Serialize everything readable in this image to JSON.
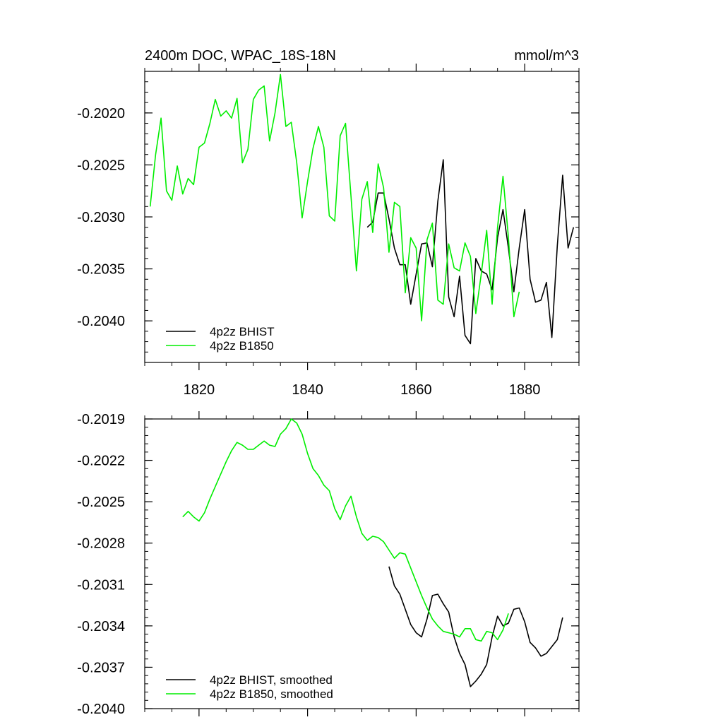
{
  "chart_data": [
    {
      "type": "line",
      "title": "2400m DOC, WPAC_18S-18N",
      "units_label": "mmol/m^3",
      "xlim": [
        1810,
        1890
      ],
      "ylim": [
        -0.2044,
        -0.2016
      ],
      "x_ticks": [
        1820,
        1840,
        1860,
        1880
      ],
      "x_tick_labels": [
        "1820",
        "1840",
        "1860",
        "1880"
      ],
      "y_ticks": [
        -0.202,
        -0.2025,
        -0.203,
        -0.2035,
        -0.204
      ],
      "y_tick_labels": [
        "-0.2020",
        "-0.2025",
        "-0.2030",
        "-0.2035",
        "-0.2040"
      ],
      "legend_position": "bottom-left",
      "series": [
        {
          "name": "4p2z BHIST",
          "color": "#000000",
          "x": [
            1851,
            1852,
            1853,
            1854,
            1855,
            1856,
            1857,
            1858,
            1859,
            1860,
            1861,
            1862,
            1863,
            1864,
            1865,
            1866,
            1867,
            1868,
            1869,
            1870,
            1871,
            1872,
            1873,
            1874,
            1875,
            1876,
            1877,
            1878,
            1879,
            1880,
            1881,
            1882,
            1883,
            1884,
            1885,
            1886,
            1887,
            1888,
            1889
          ],
          "values": [
            -0.2031,
            -0.20305,
            -0.20277,
            -0.20277,
            -0.20302,
            -0.2033,
            -0.20346,
            -0.20346,
            -0.20384,
            -0.20355,
            -0.20326,
            -0.20325,
            -0.20348,
            -0.20285,
            -0.20245,
            -0.20377,
            -0.20396,
            -0.20357,
            -0.20414,
            -0.20422,
            -0.2034,
            -0.20352,
            -0.20355,
            -0.2037,
            -0.2032,
            -0.20293,
            -0.2033,
            -0.20372,
            -0.2033,
            -0.20293,
            -0.2036,
            -0.20382,
            -0.2038,
            -0.20363,
            -0.20416,
            -0.20328,
            -0.2026,
            -0.2033,
            -0.2031
          ]
        },
        {
          "name": "4p2z B1850",
          "color": "#00ee00",
          "x": [
            1811,
            1812,
            1813,
            1814,
            1815,
            1816,
            1817,
            1818,
            1819,
            1820,
            1821,
            1822,
            1823,
            1824,
            1825,
            1826,
            1827,
            1828,
            1829,
            1830,
            1831,
            1832,
            1833,
            1834,
            1835,
            1836,
            1837,
            1838,
            1839,
            1840,
            1841,
            1842,
            1843,
            1844,
            1845,
            1846,
            1847,
            1848,
            1849,
            1850,
            1851,
            1852,
            1853,
            1854,
            1855,
            1856,
            1857,
            1858,
            1859,
            1860,
            1861,
            1862,
            1863,
            1864,
            1865,
            1866,
            1867,
            1868,
            1869,
            1870,
            1871,
            1872,
            1873,
            1874,
            1875,
            1876,
            1877,
            1878,
            1879
          ],
          "values": [
            -0.2029,
            -0.2024,
            -0.20205,
            -0.20275,
            -0.20284,
            -0.20251,
            -0.20278,
            -0.20263,
            -0.20269,
            -0.20233,
            -0.20229,
            -0.2021,
            -0.20187,
            -0.20203,
            -0.20198,
            -0.20205,
            -0.20186,
            -0.20248,
            -0.20235,
            -0.20187,
            -0.20178,
            -0.20174,
            -0.20227,
            -0.202,
            -0.20163,
            -0.20213,
            -0.20209,
            -0.20248,
            -0.20301,
            -0.20266,
            -0.20234,
            -0.20213,
            -0.20233,
            -0.20299,
            -0.20304,
            -0.20222,
            -0.2021,
            -0.2028,
            -0.20352,
            -0.20283,
            -0.20266,
            -0.20315,
            -0.20249,
            -0.20272,
            -0.20334,
            -0.20286,
            -0.2029,
            -0.20373,
            -0.2032,
            -0.2033,
            -0.204,
            -0.20322,
            -0.20306,
            -0.2038,
            -0.20384,
            -0.20326,
            -0.20349,
            -0.20352,
            -0.20325,
            -0.20338,
            -0.20393,
            -0.20355,
            -0.20313,
            -0.20384,
            -0.2031,
            -0.20261,
            -0.2032,
            -0.20396,
            -0.20372
          ]
        }
      ]
    },
    {
      "type": "line",
      "title": "",
      "xlim": [
        1810,
        1890
      ],
      "ylim": [
        -0.204,
        -0.2019
      ],
      "x_ticks": [
        1820,
        1840,
        1860,
        1880
      ],
      "y_ticks": [
        -0.2019,
        -0.2022,
        -0.2025,
        -0.2028,
        -0.2031,
        -0.2034,
        -0.2037,
        -0.204
      ],
      "y_tick_labels": [
        "-0.2019",
        "-0.2022",
        "-0.2025",
        "-0.2028",
        "-0.2031",
        "-0.2034",
        "-0.2037",
        "-0.2040"
      ],
      "legend_position": "bottom-left",
      "series": [
        {
          "name": "4p2z BHIST, smoothed",
          "color": "#000000",
          "x": [
            1855,
            1856,
            1857,
            1858,
            1859,
            1860,
            1861,
            1862,
            1863,
            1864,
            1865,
            1866,
            1867,
            1868,
            1869,
            1870,
            1871,
            1872,
            1873,
            1874,
            1875,
            1876,
            1877,
            1878,
            1879,
            1880,
            1881,
            1882,
            1883,
            1884,
            1885,
            1886,
            1887
          ],
          "values": [
            -0.20297,
            -0.20311,
            -0.20317,
            -0.20328,
            -0.20339,
            -0.20345,
            -0.20348,
            -0.20335,
            -0.20318,
            -0.20317,
            -0.20324,
            -0.2033,
            -0.20348,
            -0.2036,
            -0.20368,
            -0.20384,
            -0.2038,
            -0.20375,
            -0.20368,
            -0.20348,
            -0.20333,
            -0.2034,
            -0.20338,
            -0.20328,
            -0.20327,
            -0.20337,
            -0.20352,
            -0.20356,
            -0.20362,
            -0.2036,
            -0.20355,
            -0.2035,
            -0.20334
          ]
        },
        {
          "name": "4p2z B1850, smoothed",
          "color": "#00ee00",
          "x": [
            1817,
            1818,
            1819,
            1820,
            1821,
            1822,
            1823,
            1824,
            1825,
            1826,
            1827,
            1828,
            1829,
            1830,
            1831,
            1832,
            1833,
            1834,
            1835,
            1836,
            1837,
            1838,
            1839,
            1840,
            1841,
            1842,
            1843,
            1844,
            1845,
            1846,
            1847,
            1848,
            1849,
            1850,
            1851,
            1852,
            1853,
            1854,
            1855,
            1856,
            1857,
            1858,
            1859,
            1860,
            1861,
            1862,
            1863,
            1864,
            1865,
            1866,
            1867,
            1868,
            1869,
            1870,
            1871,
            1872,
            1873,
            1874,
            1875,
            1876,
            1877
          ],
          "values": [
            -0.20261,
            -0.20257,
            -0.20261,
            -0.20264,
            -0.20258,
            -0.20248,
            -0.20239,
            -0.2023,
            -0.20221,
            -0.20213,
            -0.20207,
            -0.20209,
            -0.20212,
            -0.20212,
            -0.20209,
            -0.20206,
            -0.20209,
            -0.2021,
            -0.20201,
            -0.20197,
            -0.2019,
            -0.20193,
            -0.20201,
            -0.20215,
            -0.20226,
            -0.20231,
            -0.20238,
            -0.20242,
            -0.20255,
            -0.20263,
            -0.20253,
            -0.20246,
            -0.20261,
            -0.20273,
            -0.20278,
            -0.20275,
            -0.20276,
            -0.20279,
            -0.20285,
            -0.20291,
            -0.20287,
            -0.20288,
            -0.20298,
            -0.20308,
            -0.20318,
            -0.20327,
            -0.20335,
            -0.2034,
            -0.20344,
            -0.20345,
            -0.20346,
            -0.20348,
            -0.20342,
            -0.20342,
            -0.2035,
            -0.20351,
            -0.20344,
            -0.20345,
            -0.2035,
            -0.20343,
            -0.20331
          ]
        }
      ]
    }
  ]
}
